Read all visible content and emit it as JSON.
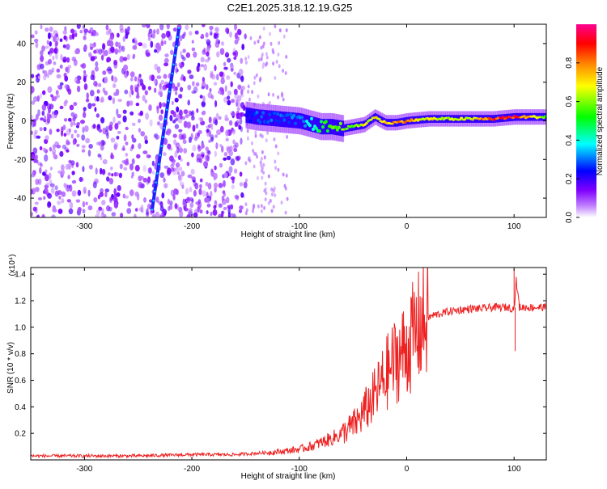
{
  "title": "C2E1.2025.318.12.19.G25",
  "chart_data": [
    {
      "type": "heatmap",
      "xlabel": "Height of straight line (km)",
      "ylabel": "Frequency (Hz)",
      "xlim": [
        -350,
        130
      ],
      "ylim": [
        -50,
        50
      ],
      "xticks": [
        -300,
        -200,
        -100,
        0,
        100
      ],
      "yticks": [
        -40,
        -20,
        0,
        20,
        40
      ],
      "colorbar": {
        "label": "Normalized spectral amplitude",
        "range": [
          0,
          1
        ],
        "ticks": [
          0.0,
          0.2,
          0.4,
          0.6,
          0.8
        ],
        "tick_labels": [
          "0.0",
          "0.2",
          "0.4",
          "0.6",
          "0.8"
        ],
        "colors": [
          "#ffffff",
          "#a000ff",
          "#0000ff",
          "#00ffff",
          "#00ff00",
          "#ffff00",
          "#ff8000",
          "#ff0000",
          "#ff0080"
        ]
      },
      "noise_region": {
        "x": [
          -350,
          -150
        ],
        "y": [
          -50,
          50
        ],
        "amplitude": 0.1
      },
      "streak": {
        "x": [
          -237,
          -212
        ],
        "y": [
          -46,
          48
        ],
        "amplitude": 0.22
      },
      "carrier": {
        "x": [
          -150,
          -140,
          -120,
          -100,
          -80,
          -70,
          -60,
          -50,
          -40,
          -30,
          -20,
          -10,
          0,
          20,
          40,
          60,
          80,
          100,
          120,
          130
        ],
        "y": [
          3,
          2,
          1,
          0,
          -3,
          -3,
          -4,
          -3,
          -2,
          2,
          -1,
          -1,
          0,
          1,
          1,
          1,
          1,
          2,
          2,
          2
        ],
        "amplitude": [
          0.22,
          0.3,
          0.3,
          0.32,
          0.5,
          0.6,
          0.65,
          0.6,
          0.7,
          0.7,
          0.78,
          0.8,
          0.82,
          0.7,
          0.65,
          0.7,
          0.9,
          0.95,
          0.7,
          0.6
        ]
      }
    },
    {
      "type": "line",
      "title_note": "(x10⁴)",
      "xlabel": "Height of straight line (km)",
      "ylabel": "SNR (10 * v/v)",
      "xlim": [
        -350,
        130
      ],
      "ylim": [
        0,
        1.45
      ],
      "xticks": [
        -300,
        -200,
        -100,
        0,
        100
      ],
      "yticks": [
        0.2,
        0.4,
        0.6,
        0.8,
        1.0,
        1.2,
        1.4
      ],
      "color": "#ee2020",
      "series": [
        {
          "name": "SNR",
          "x": [
            -350,
            -300,
            -250,
            -200,
            -160,
            -120,
            -100,
            -90,
            -80,
            -70,
            -60,
            -50,
            -45,
            -40,
            -35,
            -30,
            -25,
            -20,
            -15,
            -10,
            -5,
            0,
            5,
            10,
            15,
            20,
            25,
            30,
            40,
            50,
            60,
            70,
            80,
            90,
            95,
            100,
            102,
            105,
            110,
            120,
            130
          ],
          "values": [
            0.03,
            0.03,
            0.03,
            0.04,
            0.04,
            0.06,
            0.08,
            0.1,
            0.13,
            0.16,
            0.2,
            0.26,
            0.3,
            0.36,
            0.42,
            0.48,
            0.55,
            0.63,
            0.7,
            0.76,
            0.8,
            0.84,
            0.92,
            0.98,
            1.03,
            1.07,
            1.09,
            1.1,
            1.12,
            1.13,
            1.14,
            1.14,
            1.15,
            1.15,
            1.15,
            1.14,
            1.35,
            1.15,
            1.15,
            1.15,
            1.15
          ],
          "spikes": [
            {
              "x": 100,
              "value": 1.44
            },
            {
              "x": 101,
              "value": 0.82
            }
          ]
        }
      ]
    }
  ]
}
